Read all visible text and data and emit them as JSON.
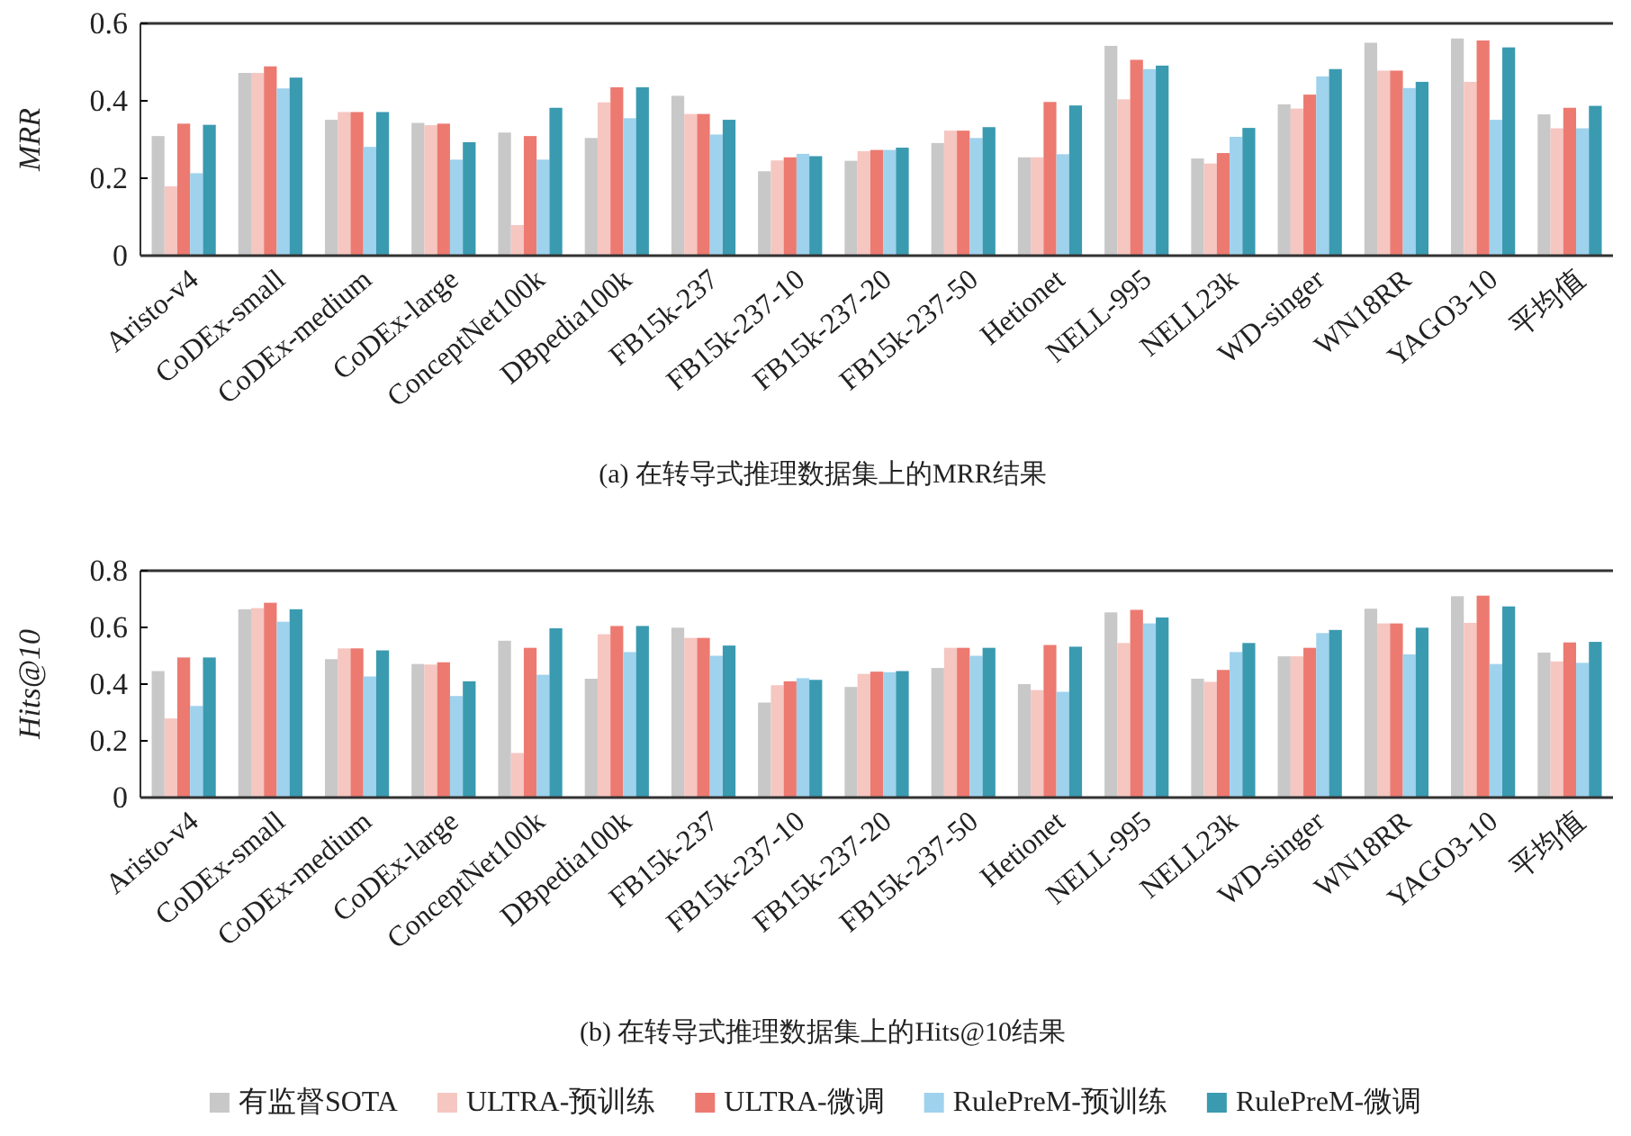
{
  "chart_data": [
    {
      "type": "bar",
      "title": "(a) 在转导式推理数据集上的MRR结果",
      "ylabel": "MRR",
      "categories": [
        "Aristo-v4",
        "CoDEx-small",
        "CoDEx-medium",
        "CoDEx-large",
        "ConceptNet100k",
        "DBpedia100k",
        "FB15k-237",
        "FB15k-237-10",
        "FB15k-237-20",
        "FB15k-237-50",
        "Hetionet",
        "NELL-995",
        "NELL23k",
        "WD-singer",
        "WN18RR",
        "YAGO3-10",
        "平均值"
      ],
      "ylim": [
        0,
        0.6
      ],
      "yticks": [
        0,
        0.2,
        0.4,
        0.6
      ],
      "legend": false,
      "series": [
        {
          "color": "#c8c8c8",
          "values": [
            0.309,
            0.472,
            0.351,
            0.343,
            0.318,
            0.304,
            0.413,
            0.218,
            0.245,
            0.291,
            0.254,
            0.542,
            0.251,
            0.391,
            0.55,
            0.561,
            0.365
          ]
        },
        {
          "color": "#f6c6c1",
          "values": [
            0.179,
            0.472,
            0.371,
            0.337,
            0.079,
            0.396,
            0.366,
            0.246,
            0.27,
            0.323,
            0.254,
            0.404,
            0.238,
            0.38,
            0.478,
            0.449,
            0.329
          ]
        },
        {
          "color": "#ec7a71",
          "values": [
            0.341,
            0.489,
            0.371,
            0.341,
            0.309,
            0.435,
            0.366,
            0.254,
            0.273,
            0.323,
            0.397,
            0.506,
            0.265,
            0.416,
            0.478,
            0.556,
            0.382
          ]
        },
        {
          "color": "#9fd2ec",
          "values": [
            0.213,
            0.432,
            0.281,
            0.248,
            0.248,
            0.355,
            0.313,
            0.263,
            0.273,
            0.304,
            0.262,
            0.482,
            0.307,
            0.463,
            0.433,
            0.351,
            0.329
          ]
        },
        {
          "color": "#3a9ab0",
          "values": [
            0.338,
            0.46,
            0.371,
            0.293,
            0.382,
            0.435,
            0.351,
            0.257,
            0.279,
            0.332,
            0.388,
            0.491,
            0.33,
            0.482,
            0.449,
            0.538,
            0.387
          ]
        }
      ]
    },
    {
      "type": "bar",
      "title": "(b) 在转导式推理数据集上的Hits@10结果",
      "ylabel": "Hits@10",
      "categories": [
        "Aristo-v4",
        "CoDEx-small",
        "CoDEx-medium",
        "CoDEx-large",
        "ConceptNet100k",
        "DBpedia100k",
        "FB15k-237",
        "FB15k-237-10",
        "FB15k-237-20",
        "FB15k-237-50",
        "Hetionet",
        "NELL-995",
        "NELL23k",
        "WD-singer",
        "WN18RR",
        "YAGO3-10",
        "平均值"
      ],
      "ylim": [
        0,
        0.8
      ],
      "yticks": [
        0,
        0.2,
        0.4,
        0.6,
        0.8
      ],
      "legend": "bottom",
      "series": [
        {
          "name": "有监督SOTA",
          "color": "#c8c8c8",
          "values": [
            0.446,
            0.664,
            0.488,
            0.471,
            0.553,
            0.419,
            0.599,
            0.335,
            0.39,
            0.457,
            0.4,
            0.653,
            0.419,
            0.498,
            0.666,
            0.71,
            0.511
          ]
        },
        {
          "name": "ULTRA-预训练",
          "color": "#f6c6c1",
          "values": [
            0.279,
            0.668,
            0.526,
            0.469,
            0.157,
            0.576,
            0.563,
            0.396,
            0.436,
            0.528,
            0.379,
            0.545,
            0.408,
            0.498,
            0.614,
            0.616,
            0.48
          ]
        },
        {
          "name": "ULTRA-微调",
          "color": "#ec7a71",
          "values": [
            0.494,
            0.687,
            0.526,
            0.477,
            0.528,
            0.605,
            0.563,
            0.41,
            0.444,
            0.528,
            0.538,
            0.662,
            0.45,
            0.528,
            0.614,
            0.712,
            0.547
          ]
        },
        {
          "name": "RulePreM-预训练",
          "color": "#9fd2ec",
          "values": [
            0.323,
            0.62,
            0.427,
            0.358,
            0.433,
            0.513,
            0.5,
            0.421,
            0.442,
            0.5,
            0.373,
            0.614,
            0.513,
            0.58,
            0.505,
            0.471,
            0.475
          ]
        },
        {
          "name": "RulePreM-微调",
          "color": "#3a9ab0",
          "values": [
            0.494,
            0.664,
            0.519,
            0.41,
            0.597,
            0.605,
            0.536,
            0.415,
            0.446,
            0.528,
            0.532,
            0.635,
            0.545,
            0.591,
            0.599,
            0.674,
            0.549
          ]
        }
      ]
    }
  ]
}
